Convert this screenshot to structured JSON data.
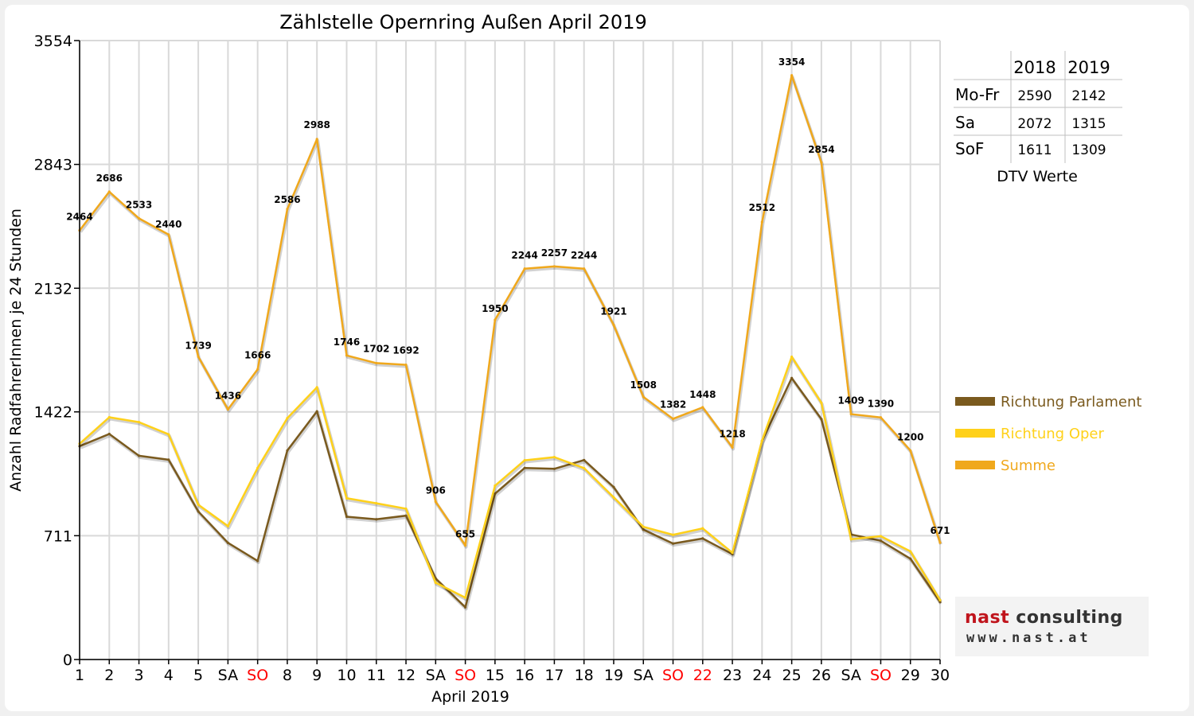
{
  "chart_data": {
    "type": "line",
    "title": "Zählstelle Opernring Außen April 2019",
    "xlabel": "April 2019",
    "ylabel": "Anzahl RadfahrerInnen je 24 Stunden",
    "ylim": [
      0,
      3554
    ],
    "yticks": [
      0,
      711,
      1422,
      2132,
      2843,
      3554
    ],
    "grid": true,
    "legend_position": "right",
    "categories": [
      "1",
      "2",
      "3",
      "4",
      "5",
      "SA",
      "SO",
      "8",
      "9",
      "10",
      "11",
      "12",
      "SA",
      "SO",
      "15",
      "16",
      "17",
      "18",
      "19",
      "SA",
      "SO",
      "22",
      "23",
      "24",
      "25",
      "26",
      "SA",
      "SO",
      "29",
      "30"
    ],
    "category_colors": [
      "#000000",
      "#000000",
      "#000000",
      "#000000",
      "#000000",
      "#000000",
      "#ff0000",
      "#000000",
      "#000000",
      "#000000",
      "#000000",
      "#000000",
      "#000000",
      "#ff0000",
      "#000000",
      "#000000",
      "#000000",
      "#000000",
      "#000000",
      "#000000",
      "#ff0000",
      "#ff0000",
      "#000000",
      "#000000",
      "#000000",
      "#000000",
      "#000000",
      "#ff0000",
      "#000000",
      "#000000"
    ],
    "series": [
      {
        "name": "Richtung Parlament",
        "color": "#7a5a1e",
        "values": [
          1225,
          1295,
          1170,
          1147,
          850,
          670,
          566,
          1200,
          1425,
          820,
          805,
          826,
          465,
          300,
          952,
          1100,
          1095,
          1145,
          990,
          746,
          666,
          695,
          605,
          1255,
          1616,
          1380,
          718,
          682,
          579,
          330
        ]
      },
      {
        "name": "Richtung Oper",
        "color": "#ffd11a",
        "values": [
          1239,
          1391,
          1363,
          1293,
          889,
          766,
          1100,
          1386,
          1563,
          926,
          897,
          866,
          441,
          355,
          998,
          1144,
          1162,
          1099,
          931,
          762,
          716,
          753,
          613,
          1257,
          1738,
          1474,
          691,
          708,
          621,
          341
        ]
      },
      {
        "name": "Summe",
        "color": "#f0a81c",
        "values": [
          2464,
          2686,
          2533,
          2440,
          1739,
          1436,
          1666,
          2586,
          2988,
          1746,
          1702,
          1692,
          906,
          655,
          1950,
          2244,
          2257,
          2244,
          1921,
          1508,
          1382,
          1448,
          1218,
          2512,
          3354,
          2854,
          1409,
          1390,
          1200,
          671
        ],
        "data_labels": [
          "2464",
          "2686",
          "2533",
          "2440",
          "1739",
          "1436",
          "1666",
          "2586",
          "2988",
          "1746",
          "1702",
          "1692",
          "906",
          "655",
          "1950",
          "2244",
          "2257",
          "2244",
          "1921",
          "1508",
          "1382",
          "1448",
          "1218",
          "2512",
          "3354",
          "2854",
          "1409",
          "1390",
          "1200",
          "671"
        ]
      }
    ],
    "dtv_table": {
      "caption": "DTV Werte",
      "columns": [
        "",
        "2018",
        "2019"
      ],
      "rows": [
        [
          "Mo-Fr",
          "2590",
          "2142"
        ],
        [
          "Sa",
          "2072",
          "1315"
        ],
        [
          "SoF",
          "1611",
          "1309"
        ]
      ]
    }
  },
  "logo": {
    "name_accent": "nast",
    "name_rest": " consulting",
    "url": "www.nast.at"
  }
}
